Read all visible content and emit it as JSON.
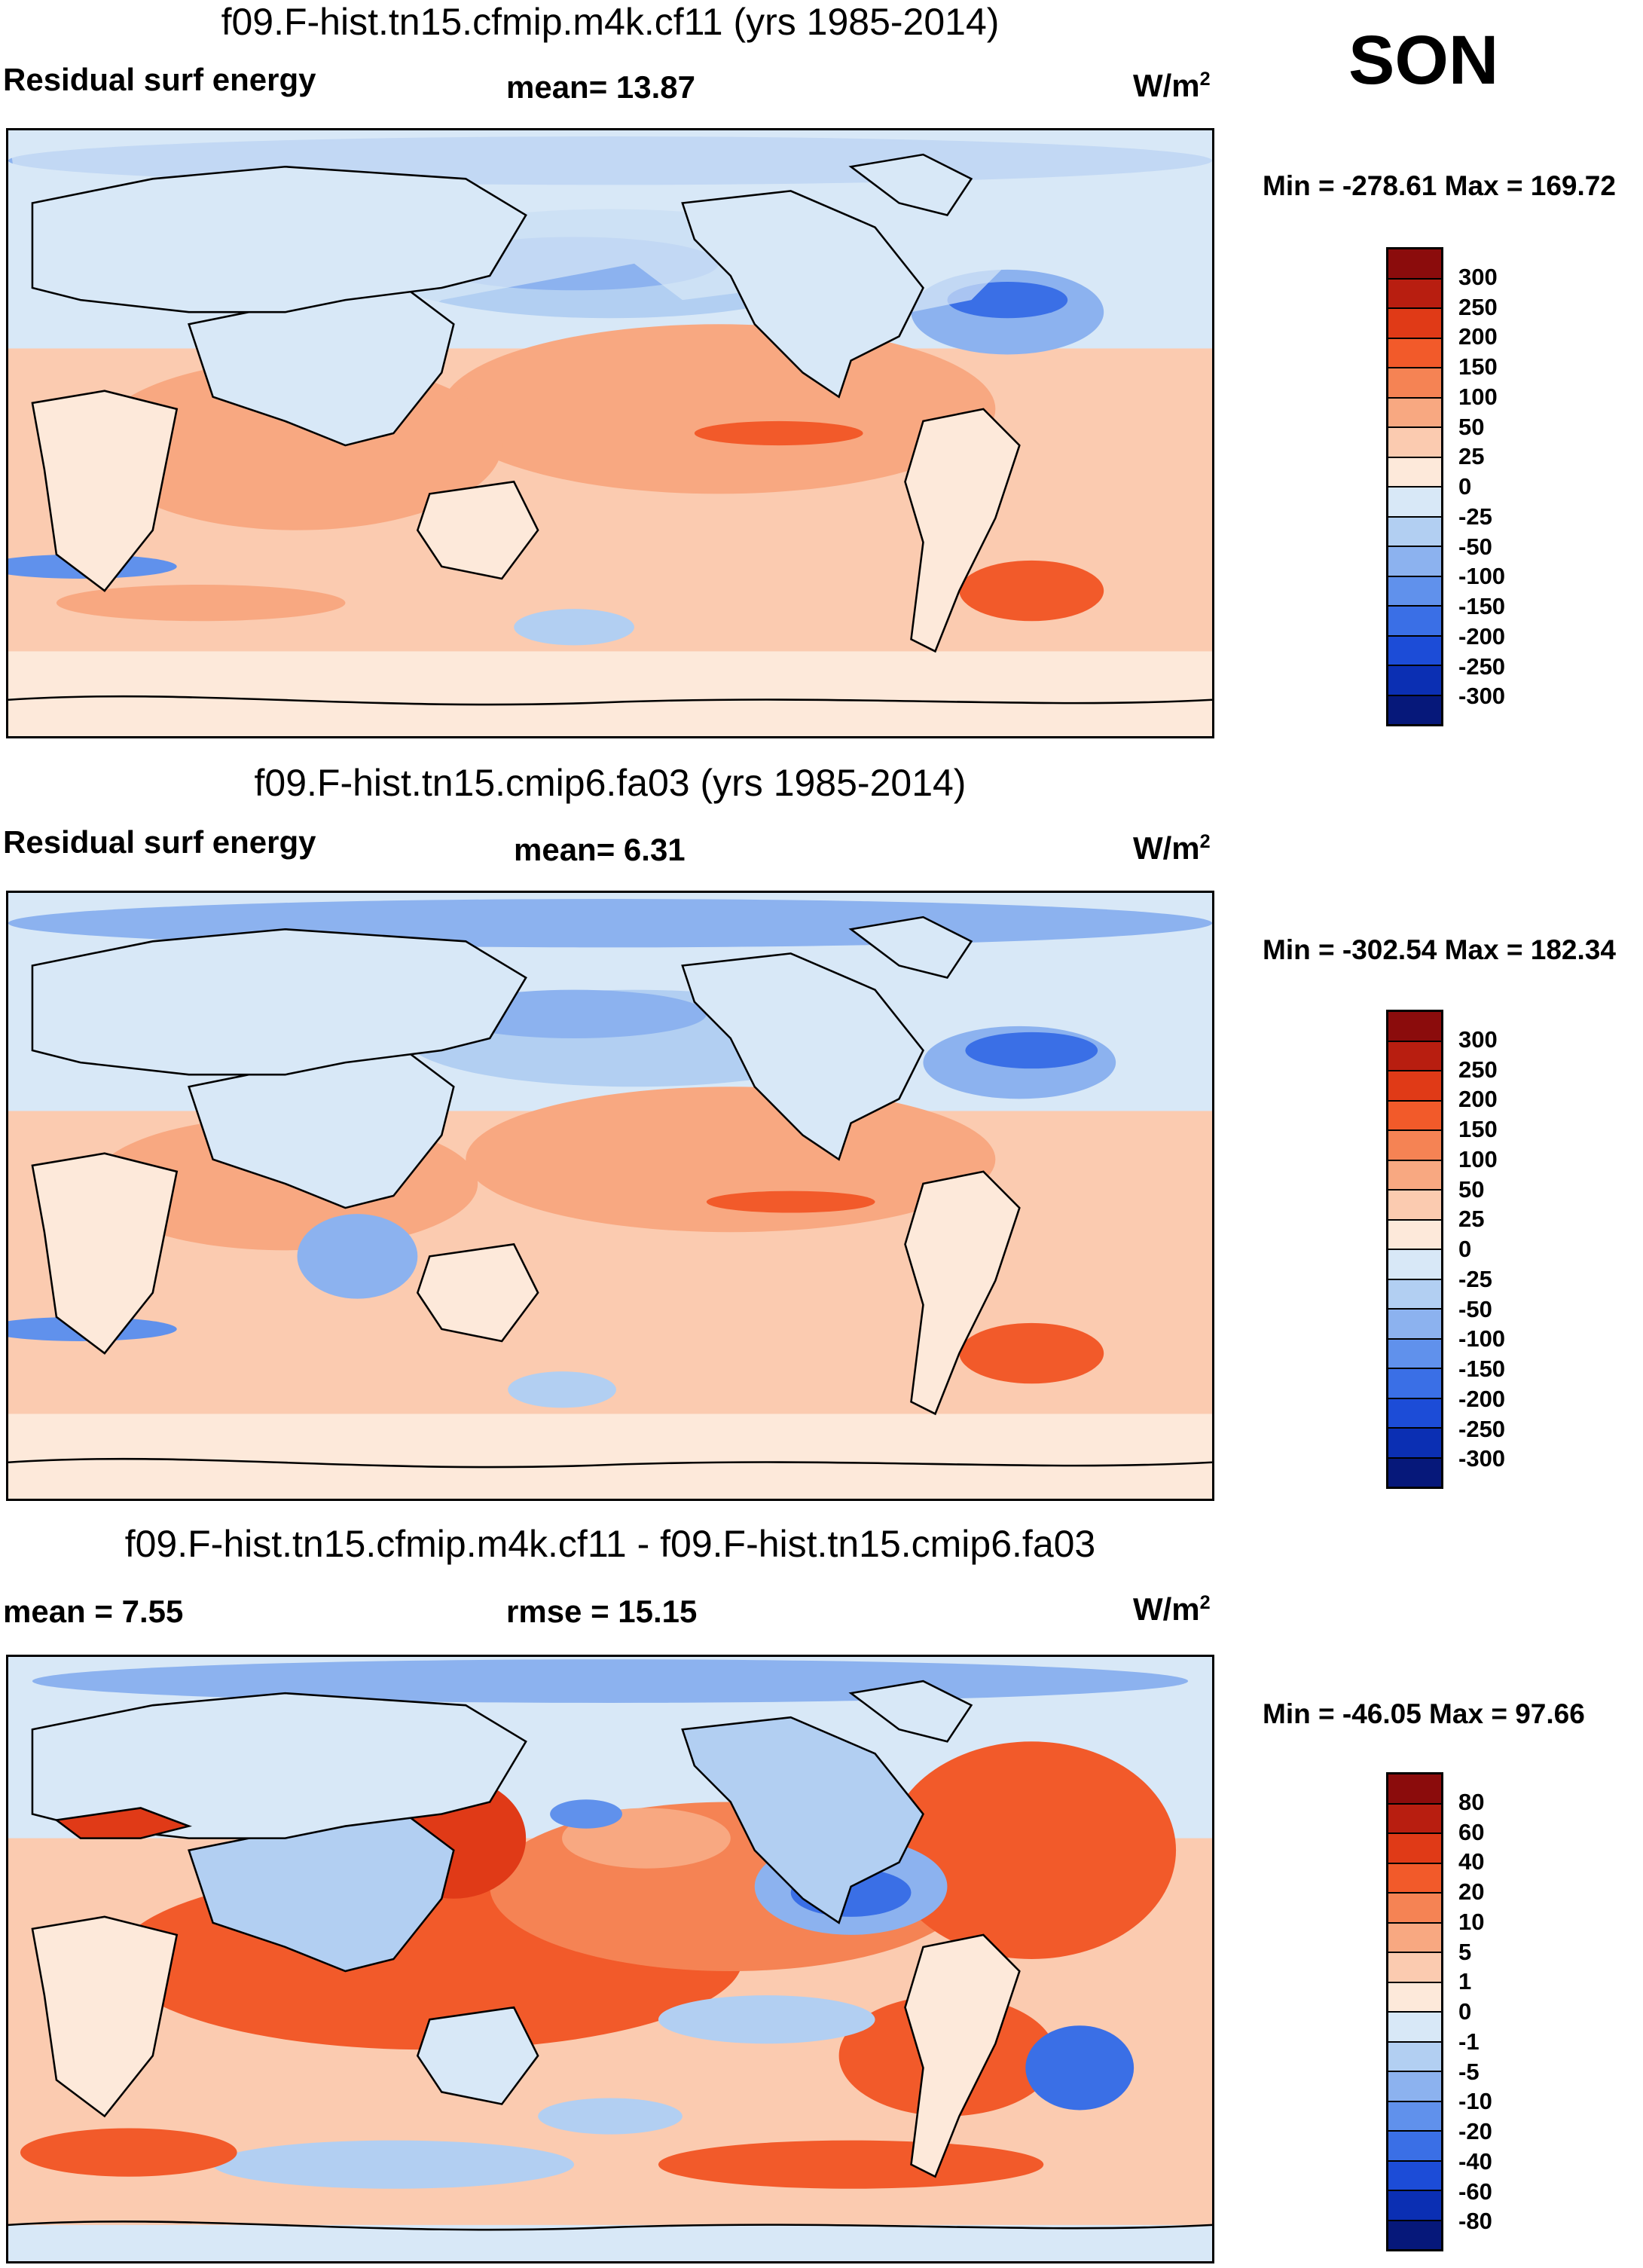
{
  "season": "SON",
  "units_label": "W/m",
  "units_sup": "2",
  "panels": [
    {
      "title": "f09.F-hist.tn15.cfmip.m4k.cf11 (yrs 1985-2014)",
      "left_label": "Residual surf energy",
      "stat_label": "mean=  13.87",
      "minmax": "Min = -278.61 Max = 169.72"
    },
    {
      "title": "f09.F-hist.tn15.cmip6.fa03 (yrs 1985-2014)",
      "left_label": "Residual surf energy",
      "stat_label": "mean=   6.31",
      "minmax": "Min = -302.54 Max = 182.34"
    },
    {
      "title": "f09.F-hist.tn15.cfmip.m4k.cf11 - f09.F-hist.tn15.cmip6.fa03",
      "left_label": "mean =   7.55",
      "stat_label": "rmse =  15.15",
      "minmax": "Min = -46.05 Max =  97.66"
    }
  ],
  "colorbars": {
    "absolute": {
      "labels": [
        "300",
        "250",
        "200",
        "150",
        "100",
        "50",
        "25",
        "0",
        "-25",
        "-50",
        "-100",
        "-150",
        "-200",
        "-250",
        "-300"
      ],
      "colors": [
        "#8b0c0c",
        "#b81e10",
        "#e03a17",
        "#f25a2a",
        "#f58354",
        "#f8a881",
        "#fbcbb0",
        "#fde9da",
        "#d8e8f7",
        "#b2cff2",
        "#8cb2ef",
        "#6091ec",
        "#3a6fe6",
        "#1c4cd7",
        "#0b2fb3",
        "#06187a"
      ]
    },
    "difference": {
      "labels": [
        "80",
        "60",
        "40",
        "20",
        "10",
        "5",
        "1",
        "0",
        "-1",
        "-5",
        "-10",
        "-20",
        "-40",
        "-60",
        "-80"
      ],
      "colors": [
        "#8b0c0c",
        "#b81e10",
        "#e03a17",
        "#f25a2a",
        "#f58354",
        "#f8a881",
        "#fbcbb0",
        "#fde9da",
        "#d8e8f7",
        "#b2cff2",
        "#8cb2ef",
        "#6091ec",
        "#3a6fe6",
        "#1c4cd7",
        "#0b2fb3",
        "#06187a"
      ]
    }
  }
}
